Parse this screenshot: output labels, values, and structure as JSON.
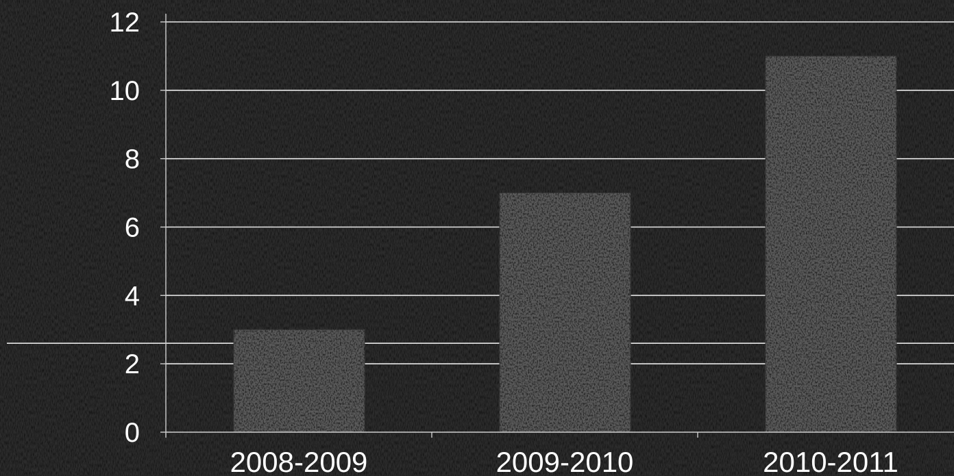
{
  "chart_data": {
    "type": "bar",
    "title": "",
    "xlabel": "",
    "ylabel": "",
    "categories": [
      "2008-2009",
      "2009-2010",
      "2010-2011"
    ],
    "values": [
      3,
      7,
      11
    ],
    "ylim": [
      0,
      12
    ],
    "yticks": [
      0,
      2,
      4,
      6,
      8,
      10,
      12
    ],
    "ytick_labels": [
      "0",
      "2",
      "4",
      "6",
      "8",
      "10",
      "12"
    ],
    "reference_line": 2.6,
    "grid": true,
    "legend": "none"
  },
  "colors": {
    "background": "#2c2c2c",
    "bar_fill": "#5b5b5b",
    "gridline": "#e8e8e8",
    "text": "#ffffff",
    "axis": "#cfcfcf"
  }
}
